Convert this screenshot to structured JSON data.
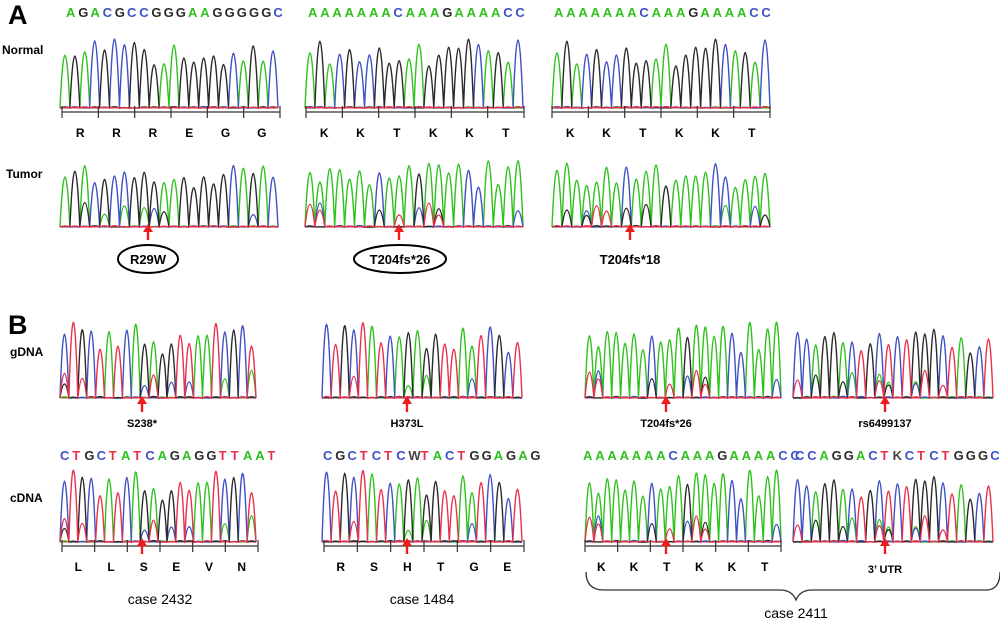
{
  "colors": {
    "A": "#2fc21f",
    "C": "#3f51c4",
    "G": "#2a2a2a",
    "T": "#e8314c",
    "arrow": "#ee1c1c",
    "base_line": "#e8314c",
    "label": "#000000"
  },
  "panel_a": {
    "label": "A",
    "row_normal": "Normal",
    "row_tumor": "Tumor",
    "columns": [
      {
        "sequence": "AGACGCCGGGAAGGGGGC",
        "codons": [
          "R",
          "R",
          "R",
          "E",
          "G",
          "G"
        ],
        "mutation": "R29W",
        "circled": true
      },
      {
        "sequence": "AAAAAAACAAAGAAAACC",
        "codons": [
          "K",
          "K",
          "T",
          "K",
          "K",
          "T"
        ],
        "mutation": "T204fs*26",
        "circled": true
      },
      {
        "sequence": "AAAAAAACAAAGAAAACC",
        "codons": [
          "K",
          "K",
          "T",
          "K",
          "K",
          "T"
        ],
        "mutation": "T204fs*18",
        "circled": false
      }
    ]
  },
  "panel_b": {
    "label": "B",
    "row_gdna": "gDNA",
    "row_cdna": "cDNA",
    "cases": [
      {
        "case": "case 2432",
        "gdna_label": "S238*",
        "cdna_sequence": "CTGCTATCAGAGGTTAAT",
        "codons": [
          "L",
          "L",
          "S",
          "E",
          "V",
          "N"
        ]
      },
      {
        "case": "case 1484",
        "gdna_label": "H373L",
        "cdna_sequence": "CGCTCTCWTACTGGAGAG",
        "codons": [
          "R",
          "S",
          "H",
          "T",
          "G",
          "E"
        ]
      },
      {
        "case": "case 2411",
        "gdna_label_1": "T204fs*26",
        "gdna_label_2": "rs6499137",
        "cdna_sequence_1": "AAAAAAACAAAGAAAACC",
        "cdna_sequence_2": "CCAGGACTKCTCTGGGCT",
        "codons": [
          "K",
          "K",
          "T",
          "K",
          "K",
          "T"
        ],
        "utr_label": "3’ UTR"
      }
    ]
  }
}
